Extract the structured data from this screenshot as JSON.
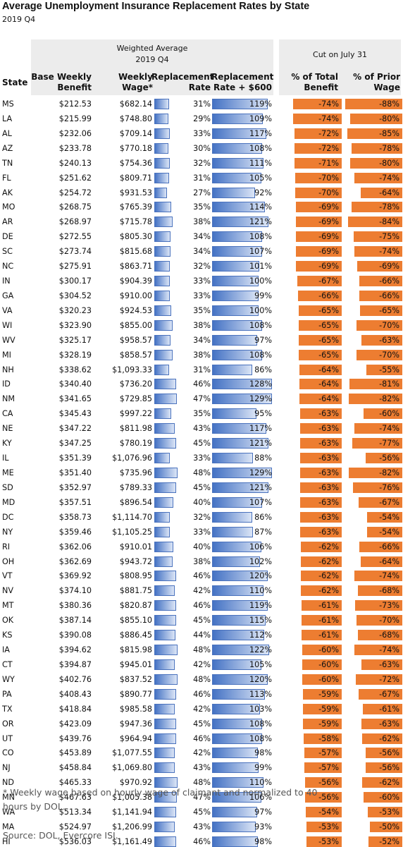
{
  "title": "Average Unemployment Insurance Replacement Rates by State",
  "subtitle": "2019 Q4",
  "group_headers": {
    "left_line1": "Weighted Average",
    "left_line2": "2019 Q4",
    "right": "Cut on July 31"
  },
  "columns": {
    "state": "State",
    "base_weekly_benefit": [
      "Base Weekly",
      "Benefit"
    ],
    "weekly_wage": [
      "Weekly",
      "Wage*"
    ],
    "replacement_rate": [
      "Replacement",
      "Rate"
    ],
    "replacement_rate_600": [
      "Replacement",
      "Rate + $600"
    ],
    "pct_total_benefit": [
      "% of Total",
      "Benefit"
    ],
    "pct_prior_wage": [
      "% of Prior",
      "Wage"
    ]
  },
  "footnote": "* Weekly wage based on hourly wage of claimant and normalized to 40 hours by DOL.",
  "source": "Source: DOL, Evercore ISI.",
  "colors": {
    "orange": "#ed7d31",
    "blue": "#4472c4",
    "header_bg": "#ececec"
  },
  "chart_data": {
    "type": "table",
    "rows": [
      {
        "state": "MS",
        "benefit": "$212.53",
        "wage": "$682.14",
        "rate": "31%",
        "rate600": "119%",
        "pct_total": "-74%",
        "pct_wage": "-88%"
      },
      {
        "state": "LA",
        "benefit": "$215.99",
        "wage": "$748.80",
        "rate": "29%",
        "rate600": "109%",
        "pct_total": "-74%",
        "pct_wage": "-80%"
      },
      {
        "state": "AL",
        "benefit": "$232.06",
        "wage": "$709.14",
        "rate": "33%",
        "rate600": "117%",
        "pct_total": "-72%",
        "pct_wage": "-85%"
      },
      {
        "state": "AZ",
        "benefit": "$233.78",
        "wage": "$770.18",
        "rate": "30%",
        "rate600": "108%",
        "pct_total": "-72%",
        "pct_wage": "-78%"
      },
      {
        "state": "TN",
        "benefit": "$240.13",
        "wage": "$754.36",
        "rate": "32%",
        "rate600": "111%",
        "pct_total": "-71%",
        "pct_wage": "-80%"
      },
      {
        "state": "FL",
        "benefit": "$251.62",
        "wage": "$809.71",
        "rate": "31%",
        "rate600": "105%",
        "pct_total": "-70%",
        "pct_wage": "-74%"
      },
      {
        "state": "AK",
        "benefit": "$254.72",
        "wage": "$931.53",
        "rate": "27%",
        "rate600": "92%",
        "pct_total": "-70%",
        "pct_wage": "-64%"
      },
      {
        "state": "MO",
        "benefit": "$268.75",
        "wage": "$765.39",
        "rate": "35%",
        "rate600": "114%",
        "pct_total": "-69%",
        "pct_wage": "-78%"
      },
      {
        "state": "AR",
        "benefit": "$268.97",
        "wage": "$715.78",
        "rate": "38%",
        "rate600": "121%",
        "pct_total": "-69%",
        "pct_wage": "-84%"
      },
      {
        "state": "DE",
        "benefit": "$272.55",
        "wage": "$805.30",
        "rate": "34%",
        "rate600": "108%",
        "pct_total": "-69%",
        "pct_wage": "-75%"
      },
      {
        "state": "SC",
        "benefit": "$273.74",
        "wage": "$815.68",
        "rate": "34%",
        "rate600": "107%",
        "pct_total": "-69%",
        "pct_wage": "-74%"
      },
      {
        "state": "NC",
        "benefit": "$275.91",
        "wage": "$863.71",
        "rate": "32%",
        "rate600": "101%",
        "pct_total": "-69%",
        "pct_wage": "-69%"
      },
      {
        "state": "IN",
        "benefit": "$300.17",
        "wage": "$904.39",
        "rate": "33%",
        "rate600": "100%",
        "pct_total": "-67%",
        "pct_wage": "-66%"
      },
      {
        "state": "GA",
        "benefit": "$304.52",
        "wage": "$910.00",
        "rate": "33%",
        "rate600": "99%",
        "pct_total": "-66%",
        "pct_wage": "-66%"
      },
      {
        "state": "VA",
        "benefit": "$320.23",
        "wage": "$924.53",
        "rate": "35%",
        "rate600": "100%",
        "pct_total": "-65%",
        "pct_wage": "-65%"
      },
      {
        "state": "WI",
        "benefit": "$323.90",
        "wage": "$855.00",
        "rate": "38%",
        "rate600": "108%",
        "pct_total": "-65%",
        "pct_wage": "-70%"
      },
      {
        "state": "WV",
        "benefit": "$325.17",
        "wage": "$958.57",
        "rate": "34%",
        "rate600": "97%",
        "pct_total": "-65%",
        "pct_wage": "-63%"
      },
      {
        "state": "MI",
        "benefit": "$328.19",
        "wage": "$858.57",
        "rate": "38%",
        "rate600": "108%",
        "pct_total": "-65%",
        "pct_wage": "-70%"
      },
      {
        "state": "NH",
        "benefit": "$338.62",
        "wage": "$1,093.33",
        "rate": "31%",
        "rate600": "86%",
        "pct_total": "-64%",
        "pct_wage": "-55%"
      },
      {
        "state": "ID",
        "benefit": "$340.40",
        "wage": "$736.20",
        "rate": "46%",
        "rate600": "128%",
        "pct_total": "-64%",
        "pct_wage": "-81%"
      },
      {
        "state": "NM",
        "benefit": "$341.65",
        "wage": "$729.85",
        "rate": "47%",
        "rate600": "129%",
        "pct_total": "-64%",
        "pct_wage": "-82%"
      },
      {
        "state": "CA",
        "benefit": "$345.43",
        "wage": "$997.22",
        "rate": "35%",
        "rate600": "95%",
        "pct_total": "-63%",
        "pct_wage": "-60%"
      },
      {
        "state": "NE",
        "benefit": "$347.22",
        "wage": "$811.98",
        "rate": "43%",
        "rate600": "117%",
        "pct_total": "-63%",
        "pct_wage": "-74%"
      },
      {
        "state": "KY",
        "benefit": "$347.25",
        "wage": "$780.19",
        "rate": "45%",
        "rate600": "121%",
        "pct_total": "-63%",
        "pct_wage": "-77%"
      },
      {
        "state": "IL",
        "benefit": "$351.39",
        "wage": "$1,076.96",
        "rate": "33%",
        "rate600": "88%",
        "pct_total": "-63%",
        "pct_wage": "-56%"
      },
      {
        "state": "ME",
        "benefit": "$351.40",
        "wage": "$735.96",
        "rate": "48%",
        "rate600": "129%",
        "pct_total": "-63%",
        "pct_wage": "-82%"
      },
      {
        "state": "SD",
        "benefit": "$352.97",
        "wage": "$789.33",
        "rate": "45%",
        "rate600": "121%",
        "pct_total": "-63%",
        "pct_wage": "-76%"
      },
      {
        "state": "MD",
        "benefit": "$357.51",
        "wage": "$896.54",
        "rate": "40%",
        "rate600": "107%",
        "pct_total": "-63%",
        "pct_wage": "-67%"
      },
      {
        "state": "DC",
        "benefit": "$358.73",
        "wage": "$1,114.70",
        "rate": "32%",
        "rate600": "86%",
        "pct_total": "-63%",
        "pct_wage": "-54%"
      },
      {
        "state": "NY",
        "benefit": "$359.46",
        "wage": "$1,105.25",
        "rate": "33%",
        "rate600": "87%",
        "pct_total": "-63%",
        "pct_wage": "-54%"
      },
      {
        "state": "RI",
        "benefit": "$362.06",
        "wage": "$910.01",
        "rate": "40%",
        "rate600": "106%",
        "pct_total": "-62%",
        "pct_wage": "-66%"
      },
      {
        "state": "OH",
        "benefit": "$362.69",
        "wage": "$943.72",
        "rate": "38%",
        "rate600": "102%",
        "pct_total": "-62%",
        "pct_wage": "-64%"
      },
      {
        "state": "VT",
        "benefit": "$369.92",
        "wage": "$808.95",
        "rate": "46%",
        "rate600": "120%",
        "pct_total": "-62%",
        "pct_wage": "-74%"
      },
      {
        "state": "NV",
        "benefit": "$374.10",
        "wage": "$881.75",
        "rate": "42%",
        "rate600": "110%",
        "pct_total": "-62%",
        "pct_wage": "-68%"
      },
      {
        "state": "MT",
        "benefit": "$380.36",
        "wage": "$820.87",
        "rate": "46%",
        "rate600": "119%",
        "pct_total": "-61%",
        "pct_wage": "-73%"
      },
      {
        "state": "OK",
        "benefit": "$387.14",
        "wage": "$855.10",
        "rate": "45%",
        "rate600": "115%",
        "pct_total": "-61%",
        "pct_wage": "-70%"
      },
      {
        "state": "KS",
        "benefit": "$390.08",
        "wage": "$886.45",
        "rate": "44%",
        "rate600": "112%",
        "pct_total": "-61%",
        "pct_wage": "-68%"
      },
      {
        "state": "IA",
        "benefit": "$394.62",
        "wage": "$815.98",
        "rate": "48%",
        "rate600": "122%",
        "pct_total": "-60%",
        "pct_wage": "-74%"
      },
      {
        "state": "CT",
        "benefit": "$394.87",
        "wage": "$945.01",
        "rate": "42%",
        "rate600": "105%",
        "pct_total": "-60%",
        "pct_wage": "-63%"
      },
      {
        "state": "WY",
        "benefit": "$402.76",
        "wage": "$837.52",
        "rate": "48%",
        "rate600": "120%",
        "pct_total": "-60%",
        "pct_wage": "-72%"
      },
      {
        "state": "PA",
        "benefit": "$408.43",
        "wage": "$890.77",
        "rate": "46%",
        "rate600": "113%",
        "pct_total": "-59%",
        "pct_wage": "-67%"
      },
      {
        "state": "TX",
        "benefit": "$418.84",
        "wage": "$985.58",
        "rate": "42%",
        "rate600": "103%",
        "pct_total": "-59%",
        "pct_wage": "-61%"
      },
      {
        "state": "OR",
        "benefit": "$423.09",
        "wage": "$947.36",
        "rate": "45%",
        "rate600": "108%",
        "pct_total": "-59%",
        "pct_wage": "-63%"
      },
      {
        "state": "UT",
        "benefit": "$439.76",
        "wage": "$964.94",
        "rate": "46%",
        "rate600": "108%",
        "pct_total": "-58%",
        "pct_wage": "-62%"
      },
      {
        "state": "CO",
        "benefit": "$453.89",
        "wage": "$1,077.55",
        "rate": "42%",
        "rate600": "98%",
        "pct_total": "-57%",
        "pct_wage": "-56%"
      },
      {
        "state": "NJ",
        "benefit": "$458.84",
        "wage": "$1,069.80",
        "rate": "43%",
        "rate600": "99%",
        "pct_total": "-57%",
        "pct_wage": "-56%"
      },
      {
        "state": "ND",
        "benefit": "$465.33",
        "wage": "$970.92",
        "rate": "48%",
        "rate600": "110%",
        "pct_total": "-56%",
        "pct_wage": "-62%"
      },
      {
        "state": "MN",
        "benefit": "$467.63",
        "wage": "$1,005.38",
        "rate": "47%",
        "rate600": "106%",
        "pct_total": "-56%",
        "pct_wage": "-60%"
      },
      {
        "state": "WA",
        "benefit": "$513.34",
        "wage": "$1,141.94",
        "rate": "45%",
        "rate600": "97%",
        "pct_total": "-54%",
        "pct_wage": "-53%"
      },
      {
        "state": "MA",
        "benefit": "$524.97",
        "wage": "$1,206.99",
        "rate": "43%",
        "rate600": "93%",
        "pct_total": "-53%",
        "pct_wage": "-50%"
      },
      {
        "state": "HI",
        "benefit": "$536.03",
        "wage": "$1,161.49",
        "rate": "46%",
        "rate600": "98%",
        "pct_total": "-53%",
        "pct_wage": "-52%"
      }
    ],
    "bars": {
      "replacement_rate": "data bars on Replacement Rate",
      "replacement_rate_600": "data bars on Replacement Rate + $600",
      "pct_total_benefit": "negative data bars",
      "pct_prior_wage": "negative data bars"
    }
  }
}
